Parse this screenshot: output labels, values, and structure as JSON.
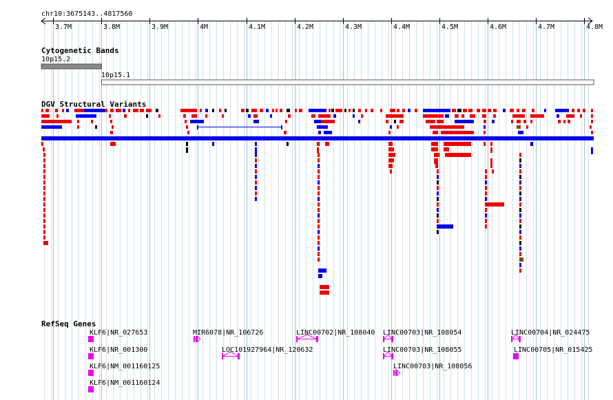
{
  "region": {
    "label": "chr10:3675143..4817560",
    "start": 3675143,
    "end": 4817560
  },
  "ruler": {
    "ticks": [
      {
        "pos": 3700000,
        "label": "3.7M"
      },
      {
        "pos": 3800000,
        "label": "3.8M"
      },
      {
        "pos": 3900000,
        "label": "3.9M"
      },
      {
        "pos": 4000000,
        "label": "4M"
      },
      {
        "pos": 4100000,
        "label": "4.1M"
      },
      {
        "pos": 4200000,
        "label": "4.2M"
      },
      {
        "pos": 4300000,
        "label": "4.3M"
      },
      {
        "pos": 4400000,
        "label": "4.4M"
      },
      {
        "pos": 4500000,
        "label": "4.5M"
      },
      {
        "pos": 4600000,
        "label": "4.6M"
      },
      {
        "pos": 4700000,
        "label": "4.7M"
      },
      {
        "pos": 4800000,
        "label": "4.8M"
      }
    ]
  },
  "tracks": {
    "cytoband": {
      "title": "Cytogenetic Bands",
      "bands": [
        {
          "name": "10p15.2",
          "start": 3675143,
          "end": 3800000,
          "fill": "#888888"
        },
        {
          "name": "10p15.1",
          "start": 3800000,
          "end": 4817560,
          "fill": "#ffffff"
        }
      ]
    },
    "dgv": {
      "title": "DGV Structural Variants",
      "colors": {
        "loss": "#ee0000",
        "gain": "#0000ee",
        "both": "#000000",
        "inversion": "#8b4513"
      }
    },
    "refseq": {
      "title": "RefSeq Genes",
      "color": "#ee00ee",
      "genes": [
        {
          "label": "KLF6|NR_027653",
          "start": 3775000,
          "end": 3785000,
          "strand": "-"
        },
        {
          "label": "KLF6|NR_001300",
          "start": 3775000,
          "end": 3785000,
          "strand": "-"
        },
        {
          "label": "KLF6|NM_001160125",
          "start": 3775000,
          "end": 3785000,
          "strand": "-"
        },
        {
          "label": "KLF6|NM_001160124",
          "start": 3775000,
          "end": 3785000,
          "strand": "-"
        },
        {
          "label": "MIR6078|NR_106726",
          "start": 3983000,
          "end": 3986000,
          "strand": "+"
        },
        {
          "label": "LOC101927964|NR_120632",
          "start": 4048000,
          "end": 4085000,
          "strand": "+"
        },
        {
          "label": "LINC00702|NR_108040",
          "start": 4240000,
          "end": 4286000,
          "strand": "+"
        },
        {
          "label": "LINC00703|NR_108054",
          "start": 4388000,
          "end": 4410000,
          "strand": "+"
        },
        {
          "label": "LINC00703|NR_108055",
          "start": 4388000,
          "end": 4410000,
          "strand": "+"
        },
        {
          "label": "LINC00703|NR_108056",
          "start": 4407000,
          "end": 4415000,
          "strand": "+"
        },
        {
          "label": "LINC00704|NR_024475",
          "start": 4650000,
          "end": 4670000,
          "strand": "+"
        },
        {
          "label": "LINC00705|NR_015425",
          "start": 4655000,
          "end": 4665000,
          "strand": "-"
        }
      ]
    }
  }
}
